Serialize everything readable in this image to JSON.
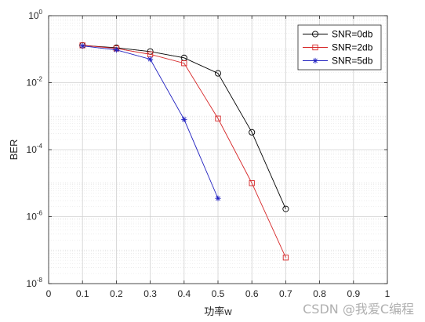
{
  "chart_data": {
    "type": "line",
    "xlabel": "功率w",
    "ylabel": "BER",
    "xlim": [
      0,
      1
    ],
    "ylim": [
      1e-08,
      1
    ],
    "yscale": "log",
    "xticks": [
      "0",
      "0.1",
      "0.2",
      "0.3",
      "0.4",
      "0.5",
      "0.6",
      "0.7",
      "0.8",
      "0.9",
      "1"
    ],
    "yticks": [
      {
        "base": "10",
        "exp": "0"
      },
      {
        "base": "10",
        "exp": "-2"
      },
      {
        "base": "10",
        "exp": "-4"
      },
      {
        "base": "10",
        "exp": "-6"
      },
      {
        "base": "10",
        "exp": "-8"
      }
    ],
    "grid": true,
    "legend_position": "top-right",
    "series": [
      {
        "name": "SNR=0db",
        "color": "#000000",
        "marker": "circle",
        "x": [
          0.1,
          0.2,
          0.3,
          0.4,
          0.5,
          0.6,
          0.7
        ],
        "y": [
          0.13,
          0.11,
          0.085,
          0.055,
          0.019,
          0.00033,
          1.7e-06
        ]
      },
      {
        "name": "SNR=2db",
        "color": "#d62728",
        "marker": "square",
        "x": [
          0.1,
          0.2,
          0.3,
          0.4,
          0.5,
          0.6,
          0.7
        ],
        "y": [
          0.13,
          0.105,
          0.07,
          0.038,
          0.00085,
          1e-05,
          6e-08
        ]
      },
      {
        "name": "SNR=5db",
        "color": "#1f1fbf",
        "marker": "asterisk",
        "x": [
          0.1,
          0.2,
          0.3,
          0.4,
          0.5
        ],
        "y": [
          0.125,
          0.095,
          0.05,
          0.0008,
          3.5e-06
        ]
      }
    ]
  },
  "watermark": "CSDN @我爱C编程"
}
